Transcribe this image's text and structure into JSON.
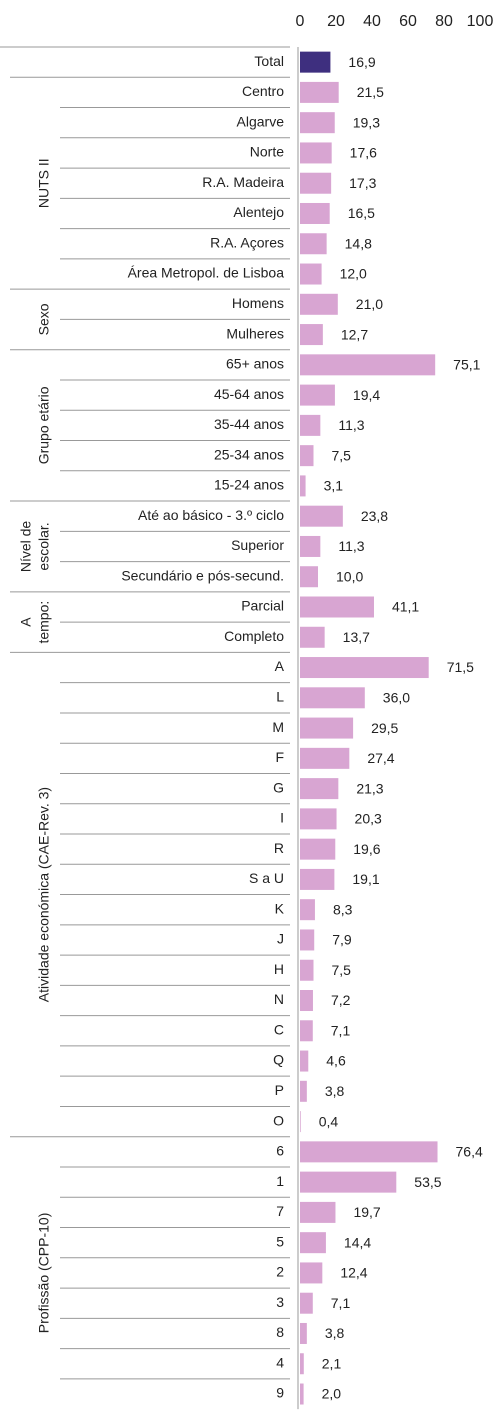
{
  "chart_data": {
    "type": "bar",
    "orientation": "horizontal",
    "xlim": [
      0,
      100
    ],
    "xticks": [
      0,
      20,
      40,
      60,
      80,
      100
    ],
    "groups": [
      {
        "color": "#3e2f7f",
        "categories": [
          "Total"
        ],
        "values": [
          16.9
        ],
        "value_labels": [
          "16,9"
        ]
      },
      {
        "name": [
          "NUTS II"
        ],
        "color": "#d8a5d2",
        "categories": [
          "Centro",
          "Algarve",
          "Norte",
          "R.A. Madeira",
          "Alentejo",
          "R.A. Açores",
          "Área Metropol. de Lisboa"
        ],
        "values": [
          21.5,
          19.3,
          17.6,
          17.3,
          16.5,
          14.8,
          12.0
        ],
        "value_labels": [
          "21,5",
          "19,3",
          "17,6",
          "17,3",
          "16,5",
          "14,8",
          "12,0"
        ]
      },
      {
        "name": [
          "Sexo"
        ],
        "color": "#d8a5d2",
        "categories": [
          "Homens",
          "Mulheres"
        ],
        "values": [
          21.0,
          12.7
        ],
        "value_labels": [
          "21,0",
          "12,7"
        ]
      },
      {
        "name": [
          "Grupo etário"
        ],
        "color": "#d8a5d2",
        "categories": [
          "65+ anos",
          "45-64 anos",
          "35-44 anos",
          "25-34 anos",
          "15-24 anos"
        ],
        "values": [
          75.1,
          19.4,
          11.3,
          7.5,
          3.1
        ],
        "value_labels": [
          "75,1",
          "19,4",
          "11,3",
          "7,5",
          "3,1"
        ]
      },
      {
        "name": [
          "Nível de",
          "escolar."
        ],
        "color": "#d8a5d2",
        "categories": [
          "Até ao básico - 3.º ciclo",
          "Superior",
          "Secundário e pós-secund."
        ],
        "values": [
          23.8,
          11.3,
          10.0
        ],
        "value_labels": [
          "23,8",
          "11,3",
          "10,0"
        ]
      },
      {
        "name": [
          "A",
          "tempo:"
        ],
        "color": "#d8a5d2",
        "categories": [
          "Parcial",
          "Completo"
        ],
        "values": [
          41.1,
          13.7
        ],
        "value_labels": [
          "41,1",
          "13,7"
        ]
      },
      {
        "name": [
          "Atividade económica (CAE-Rev. 3)"
        ],
        "color": "#d8a5d2",
        "categories": [
          "A",
          "L",
          "M",
          "F",
          "G",
          "I",
          "R",
          "S a U",
          "K",
          "J",
          "H",
          "N",
          "C",
          "Q",
          "P",
          "O"
        ],
        "values": [
          71.5,
          36.0,
          29.5,
          27.4,
          21.3,
          20.3,
          19.6,
          19.1,
          8.3,
          7.9,
          7.5,
          7.2,
          7.1,
          4.6,
          3.8,
          0.4
        ],
        "value_labels": [
          "71,5",
          "36,0",
          "29,5",
          "27,4",
          "21,3",
          "20,3",
          "19,6",
          "19,1",
          "8,3",
          "7,9",
          "7,5",
          "7,2",
          "7,1",
          "4,6",
          "3,8",
          "0,4"
        ]
      },
      {
        "name": [
          "Profissão (CPP-10)"
        ],
        "color": "#d8a5d2",
        "categories": [
          "6",
          "1",
          "7",
          "5",
          "2",
          "3",
          "8",
          "4",
          "9"
        ],
        "values": [
          76.4,
          53.5,
          19.7,
          14.4,
          12.4,
          7.1,
          3.8,
          2.1,
          2.0
        ],
        "value_labels": [
          "76,4",
          "53,5",
          "19,7",
          "14,4",
          "12,4",
          "7,1",
          "3,8",
          "2,1",
          "2,0"
        ]
      }
    ]
  }
}
